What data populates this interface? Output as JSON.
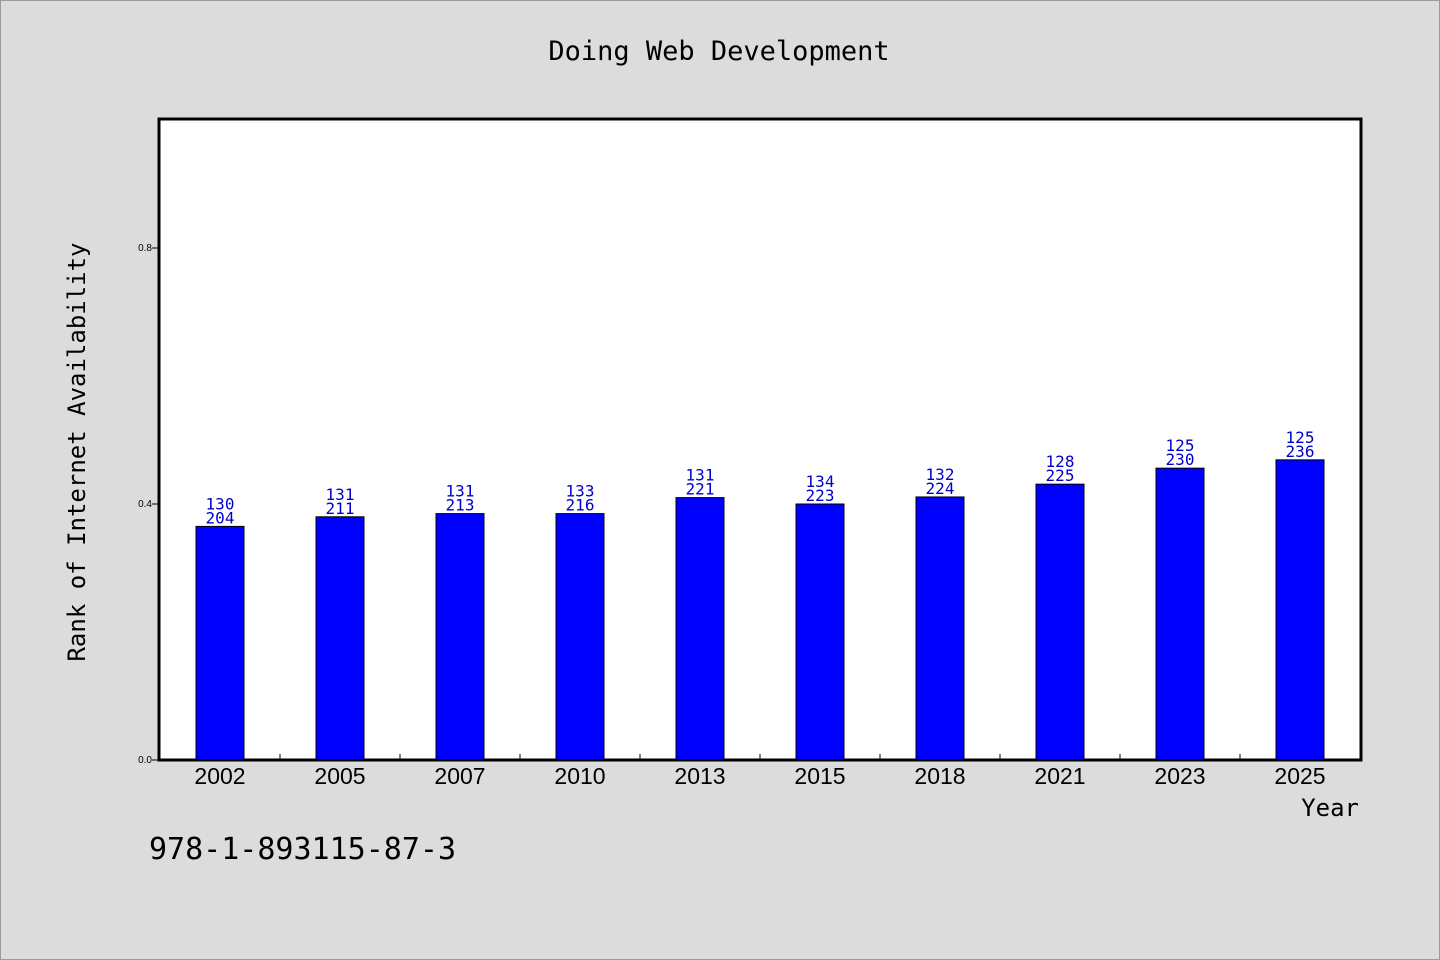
{
  "isbn": "978-1-893115-87-3",
  "chart_data": {
    "type": "bar",
    "title": "Doing Web Development",
    "xlabel": "Year",
    "ylabel": "Rank of Internet Availability",
    "categories": [
      "2002",
      "2005",
      "2007",
      "2010",
      "2013",
      "2015",
      "2018",
      "2021",
      "2023",
      "2025"
    ],
    "series": [
      {
        "values": [
          0.365,
          0.38,
          0.385,
          0.385,
          0.41,
          0.4,
          0.411,
          0.431,
          0.456,
          0.469
        ],
        "color": "#0000ff"
      }
    ],
    "data_labels_top": [
      "130",
      "131",
      "131",
      "133",
      "131",
      "134",
      "132",
      "128",
      "125",
      "125"
    ],
    "data_labels_bottom": [
      "204",
      "211",
      "213",
      "216",
      "221",
      "223",
      "224",
      "225",
      "230",
      "236"
    ],
    "yticks": [
      {
        "value": 0.0,
        "label": "0.0"
      },
      {
        "value": 0.4,
        "label": "0.4"
      },
      {
        "value": 0.8,
        "label": "0.8"
      }
    ],
    "ylim": [
      0,
      1.0
    ],
    "grid": false,
    "legend": "none",
    "colors": {
      "background": "#dcdcdc",
      "plot_background": "#ffffff",
      "bar": "#0000ff",
      "data_label": "#0000cc",
      "text": "#000000"
    }
  }
}
